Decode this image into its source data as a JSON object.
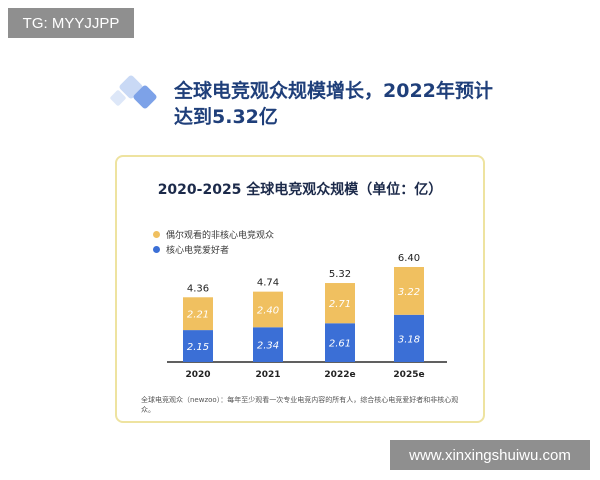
{
  "badge": {
    "text": "TG: MYYJJPP"
  },
  "headline": {
    "line1": "全球电竞观众规模增长，2022年预计",
    "line2": "达到5.32亿"
  },
  "chart_data": {
    "type": "bar",
    "stacked": true,
    "title": "2020-2025 全球电竞观众规模（单位：亿）",
    "categories": [
      "2020",
      "2021",
      "2022e",
      "2025e"
    ],
    "series": [
      {
        "name": "核心电竞爱好者",
        "values": [
          2.15,
          2.34,
          2.61,
          3.18
        ],
        "color": "#3b6fd6"
      },
      {
        "name": "偶尔观看的非核心电竞观众",
        "values": [
          2.21,
          2.4,
          2.71,
          3.22
        ],
        "color": "#f0c060"
      }
    ],
    "totals": [
      "4.36",
      "4.74",
      "5.32",
      "6.40"
    ],
    "ylim": [
      0,
      6.4
    ],
    "legend_position": "top-left",
    "grid": false
  },
  "footnote": "全球电竞观众（newzoo）：每年至少观看一次专业电竞内容的所有人，综合核心电竞爱好者和非核心观众。",
  "watermark": {
    "text": "www.xinxingshuiwu.com"
  }
}
